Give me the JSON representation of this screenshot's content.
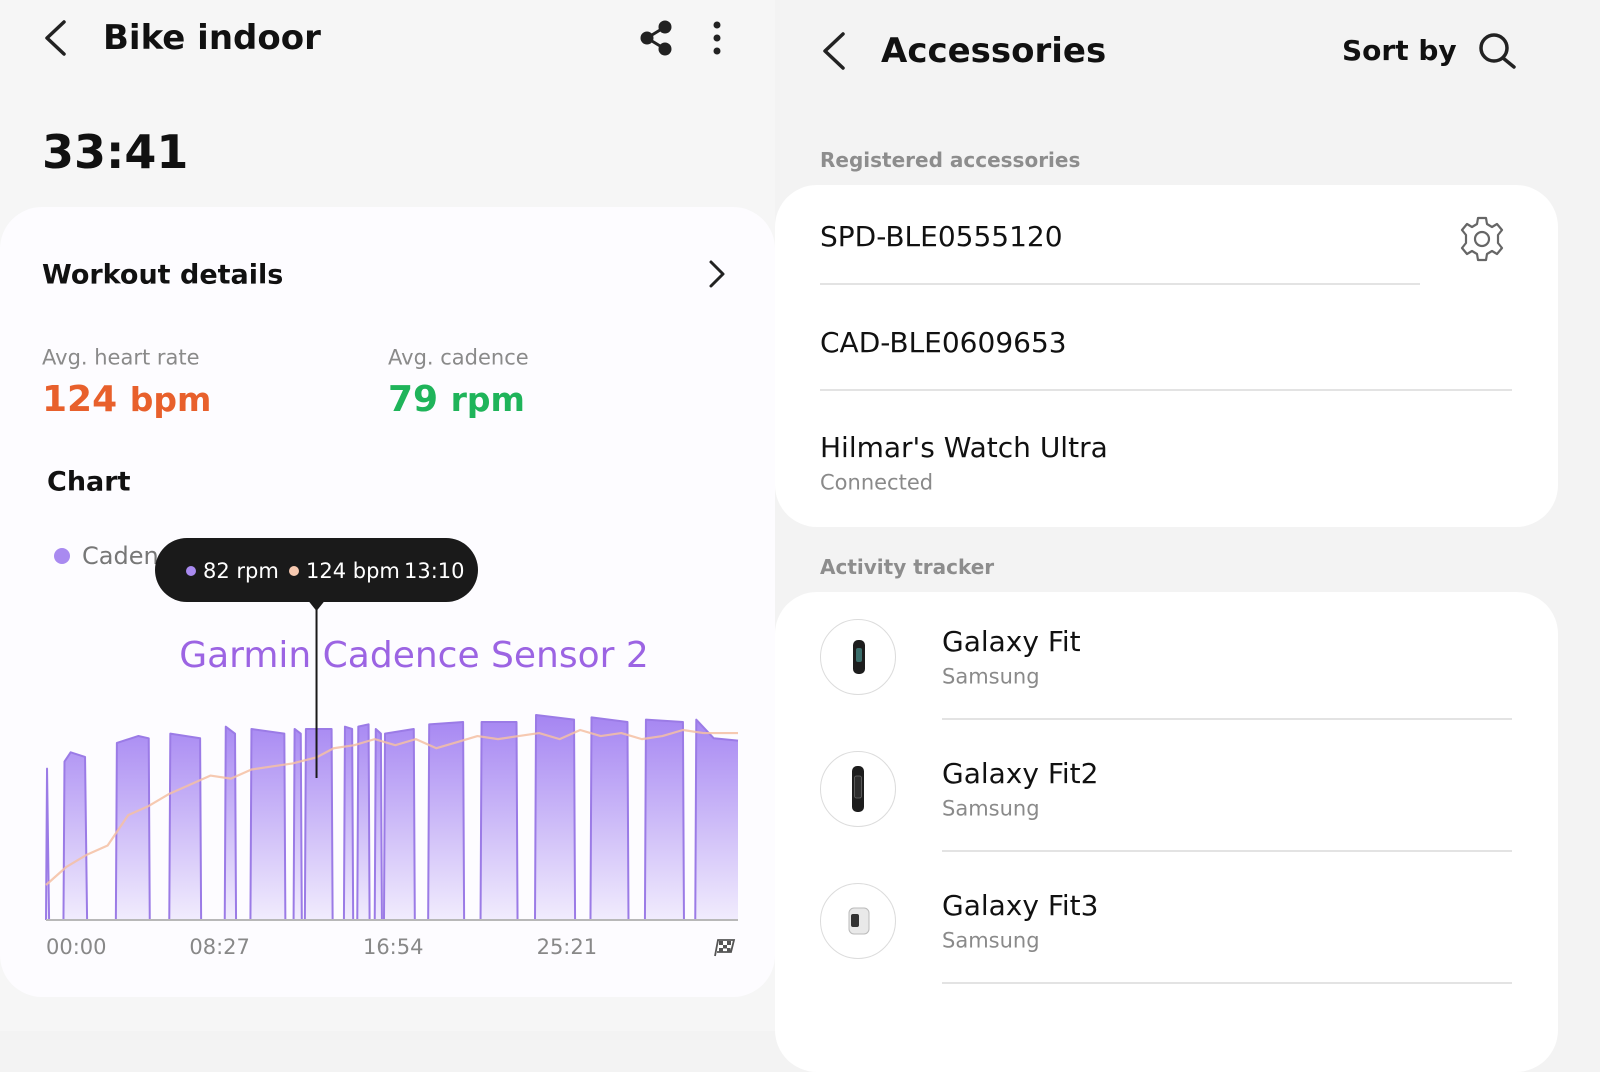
{
  "left_screen": {
    "header": {
      "title": "Bike indoor"
    },
    "duration": "33:41",
    "workout_details": {
      "title": "Workout details",
      "stats": [
        {
          "label": "Avg. heart rate",
          "value": "124",
          "unit": "bpm"
        },
        {
          "label": "Avg. cadence",
          "value": "79",
          "unit": "rpm"
        }
      ]
    },
    "chart_title": "Chart"
  },
  "chart_data": {
    "type": "area",
    "annotation": "Garmin Cadence Sensor 2",
    "xlim": [
      0,
      33.68
    ],
    "xticks": [
      {
        "value": 0,
        "label": "00:00"
      },
      {
        "value": 8.45,
        "label": "08:27"
      },
      {
        "value": 16.9,
        "label": "16:54"
      },
      {
        "value": 25.35,
        "label": "25:21"
      }
    ],
    "tooltip": {
      "x": 13.1667,
      "cadence": "82 rpm",
      "heart_rate": "124 bpm",
      "time": "13:10"
    },
    "series": [
      {
        "name": "Cadence",
        "kind": "area",
        "color": "#9b7be6",
        "x": [
          0,
          0.05,
          0.15,
          0.85,
          0.9,
          1.2,
          1.9,
          2.0,
          3.4,
          3.45,
          4.5,
          5.0,
          5.05,
          6.0,
          6.05,
          7.5,
          7.55,
          8.7,
          8.75,
          9.2,
          9.25,
          9.95,
          10.0,
          11.6,
          11.65,
          12.05,
          12.1,
          12.4,
          12.45,
          12.6,
          12.65,
          13.17,
          13.9,
          13.95,
          14.5,
          14.55,
          14.9,
          14.95,
          15.15,
          15.2,
          15.7,
          15.75,
          16.0,
          16.05,
          16.3,
          16.35,
          16.45,
          16.5,
          17.9,
          17.95,
          18.6,
          18.65,
          20.3,
          20.35,
          21.15,
          21.2,
          22.9,
          22.95,
          23.8,
          23.85,
          25.7,
          25.75,
          26.5,
          26.55,
          28.3,
          28.35,
          29.15,
          29.2,
          31.0,
          31.05,
          31.6,
          31.65,
          32.5,
          33.68
        ],
        "values": [
          0,
          65,
          0,
          0,
          68,
          72,
          70,
          0,
          0,
          76,
          79,
          78,
          0,
          0,
          80,
          78,
          0,
          0,
          83,
          80,
          0,
          0,
          82,
          80,
          0,
          0,
          82,
          80,
          0,
          0,
          82,
          82,
          82,
          0,
          0,
          83,
          82,
          0,
          0,
          83,
          84,
          0,
          0,
          82,
          80,
          0,
          0,
          80,
          82,
          0,
          0,
          84,
          85,
          0,
          0,
          85,
          85,
          0,
          0,
          88,
          86,
          0,
          0,
          87,
          85,
          0,
          0,
          86,
          85,
          0,
          0,
          86,
          78,
          77
        ]
      },
      {
        "kind": "line",
        "color": "#f4bfa3",
        "x": [
          0,
          1,
          2,
          3,
          4,
          5,
          6,
          7,
          8,
          9,
          10,
          11,
          12,
          13.17,
          14,
          15,
          16,
          17,
          18,
          19,
          20,
          21,
          22,
          23,
          24,
          25,
          26,
          27,
          28,
          29,
          30,
          31,
          32,
          33.68
        ],
        "values": [
          82,
          88,
          92,
          95,
          105,
          108,
          112,
          115,
          118,
          117,
          120,
          121,
          122,
          124,
          127,
          128,
          130,
          128,
          130,
          127,
          129,
          131,
          130,
          131,
          132,
          130,
          133,
          131,
          132,
          130,
          131,
          133,
          132,
          132
        ]
      }
    ]
  },
  "right_screen": {
    "header": {
      "title": "Accessories",
      "sort": "Sort by"
    },
    "registered": {
      "title": "Registered accessories",
      "items": [
        {
          "name": "SPD-BLE0555120"
        },
        {
          "name": "CAD-BLE0609653"
        },
        {
          "name": "Hilmar's Watch Ultra",
          "status": "Connected"
        }
      ]
    },
    "activity": {
      "title": "Activity tracker",
      "items": [
        {
          "name": "Galaxy Fit",
          "brand": "Samsung"
        },
        {
          "name": "Galaxy Fit2",
          "brand": "Samsung"
        },
        {
          "name": "Galaxy Fit3",
          "brand": "Samsung"
        }
      ]
    }
  }
}
